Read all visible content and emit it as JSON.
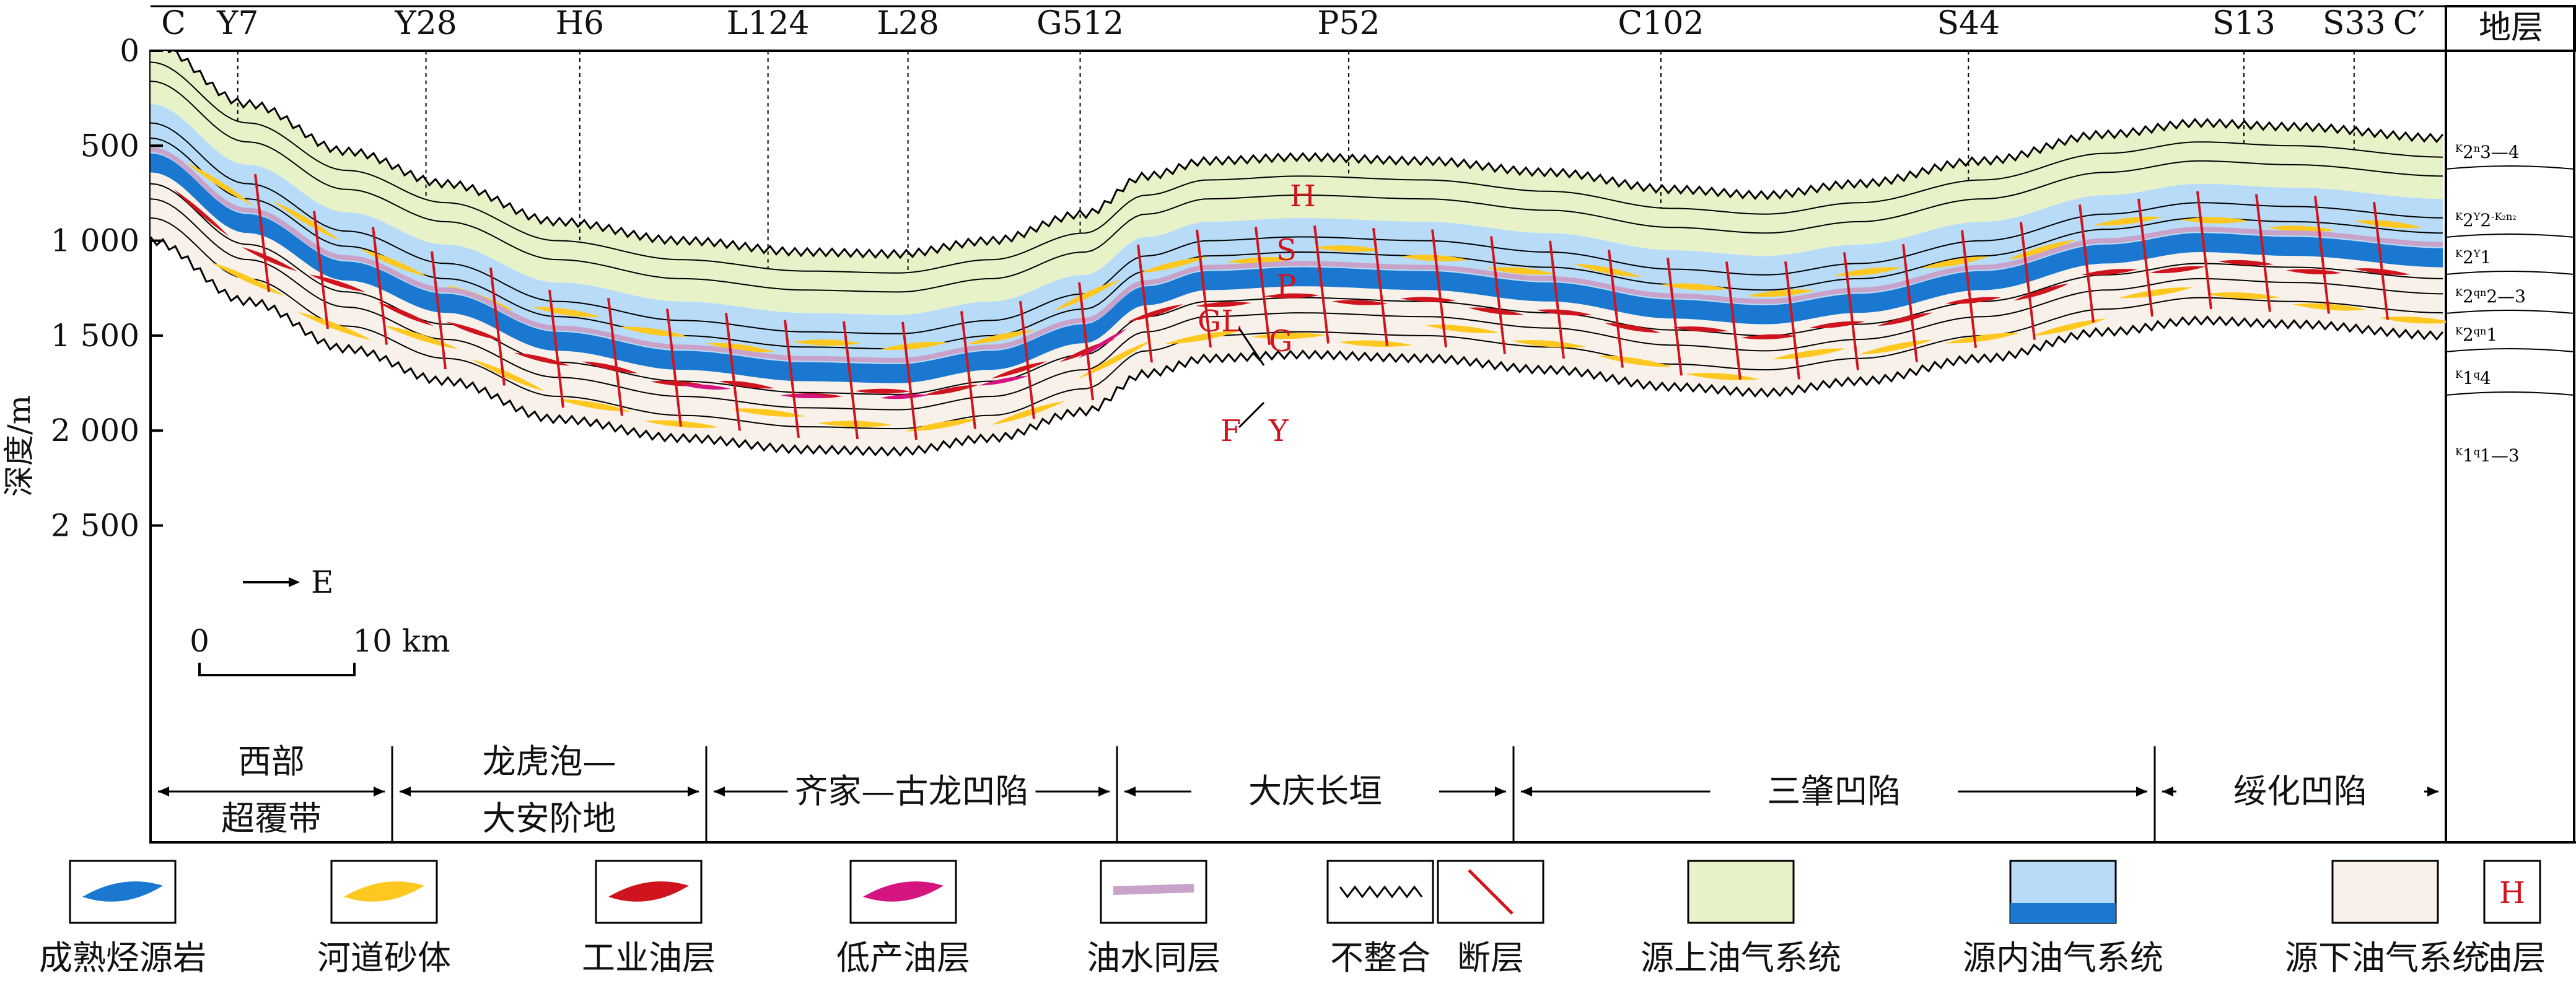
{
  "wells": [
    {
      "label": "C",
      "pos": 0.01,
      "line": false
    },
    {
      "label": "Y7",
      "pos": 0.038,
      "line": true
    },
    {
      "label": "Y28",
      "pos": 0.12,
      "line": true
    },
    {
      "label": "H6",
      "pos": 0.187,
      "line": true
    },
    {
      "label": "L124",
      "pos": 0.269,
      "line": true
    },
    {
      "label": "L28",
      "pos": 0.33,
      "line": true
    },
    {
      "label": "G512",
      "pos": 0.405,
      "line": true
    },
    {
      "label": "P52",
      "pos": 0.522,
      "line": true
    },
    {
      "label": "C102",
      "pos": 0.658,
      "line": true
    },
    {
      "label": "S44",
      "pos": 0.792,
      "line": true
    },
    {
      "label": "S13",
      "pos": 0.912,
      "line": true
    },
    {
      "label": "S33",
      "pos": 0.96,
      "line": true
    },
    {
      "label": "C′",
      "pos": 0.984,
      "line": false
    }
  ],
  "depth_axis": {
    "title": "深度/m",
    "ticks": [
      {
        "value": 0,
        "label": "0"
      },
      {
        "value": 500,
        "label": "500"
      },
      {
        "value": 1000,
        "label": "1 000"
      },
      {
        "value": 1500,
        "label": "1 500"
      },
      {
        "value": 2000,
        "label": "2 000"
      },
      {
        "value": 2500,
        "label": "2 500"
      }
    ]
  },
  "strata_header": "地层",
  "strata": [
    {
      "main": "K",
      "sub1": "2",
      "mid": "n",
      "sub2": "3—4",
      "rest": ""
    },
    {
      "main": "K",
      "sub1": "2",
      "mid": "Y",
      "sub2": "2",
      "rest": "-K₂n₂"
    },
    {
      "main": "K",
      "sub1": "2",
      "mid": "Y",
      "sub2": "1",
      "rest": ""
    },
    {
      "main": "K",
      "sub1": "2",
      "mid": "qn",
      "sub2": "2—3",
      "rest": ""
    },
    {
      "main": "K",
      "sub1": "2",
      "mid": "qn",
      "sub2": "1",
      "rest": ""
    },
    {
      "main": "K",
      "sub1": "1",
      "mid": "q",
      "sub2": "4",
      "rest": ""
    },
    {
      "main": "K",
      "sub1": "1",
      "mid": "q",
      "sub2": "1—3",
      "rest": ""
    }
  ],
  "oil_layers_marked": [
    "H",
    "S",
    "P",
    "GL",
    "G",
    "F",
    "Y"
  ],
  "direction": "E",
  "scale": {
    "zero": "0",
    "end": "10 km"
  },
  "regions": [
    {
      "line1": "西部",
      "line2": "超覆带"
    },
    {
      "line1": "龙虎泡—",
      "line2": "大安阶地"
    },
    {
      "line1": "齐家—古龙凹陷",
      "line2": ""
    },
    {
      "line1": "大庆长垣",
      "line2": ""
    },
    {
      "line1": "三肇凹陷",
      "line2": ""
    },
    {
      "line1": "绥化凹陷",
      "line2": ""
    }
  ],
  "legend": [
    {
      "key": "source-rock",
      "label": "成熟烃源岩",
      "color": "#1a78d0"
    },
    {
      "key": "channel-sand",
      "label": "河道砂体",
      "color": "#ffc820"
    },
    {
      "key": "industrial-oil",
      "label": "工业油层",
      "color": "#d0141e"
    },
    {
      "key": "low-oil",
      "label": "低产油层",
      "color": "#d4157f"
    },
    {
      "key": "oil-water",
      "label": "油水同层",
      "color": "#c8a2c8"
    },
    {
      "key": "unconformity",
      "label": "不整合",
      "color": "#000000"
    },
    {
      "key": "fault",
      "label": "断层",
      "color": "#d0141e"
    },
    {
      "key": "above-source",
      "label": "源上油气系统",
      "color": "#e8f2c8"
    },
    {
      "key": "in-source",
      "label": "源内油气系统",
      "color": "#b8dcf8"
    },
    {
      "key": "below-source",
      "label": "源下油气系统",
      "color": "#f7f1ea"
    },
    {
      "key": "oil-layer",
      "label": "油层",
      "symbol": "H",
      "color": "#d0141e"
    }
  ]
}
